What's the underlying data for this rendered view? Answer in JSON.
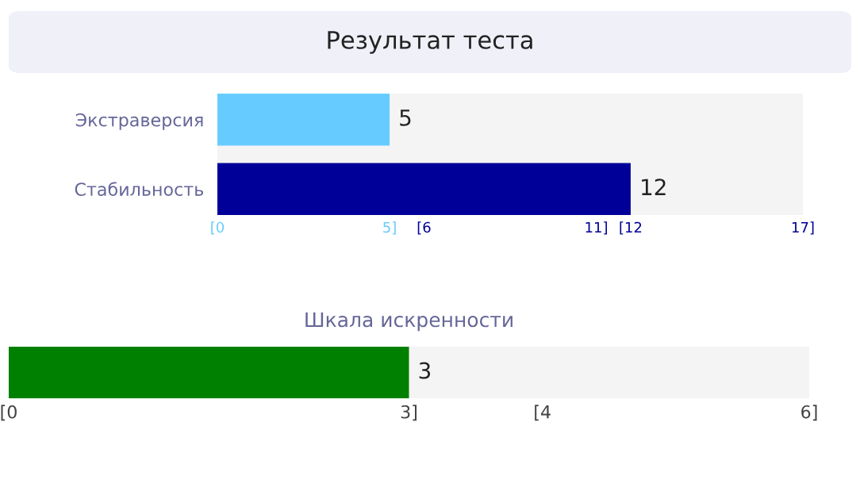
{
  "chart_data": [
    {
      "type": "bar",
      "title": "Результат теста",
      "orientation": "horizontal",
      "categories": [
        "Экстраверсия",
        "Стабильность"
      ],
      "values": [
        5,
        12
      ],
      "colors": [
        "#66ccff",
        "#000099"
      ],
      "data_labels": true,
      "xlim": [
        0,
        17
      ],
      "grid": false,
      "legend": false,
      "xticks": [
        {
          "value": 0,
          "label": "[0"
        },
        {
          "value": 5,
          "label": "5]"
        },
        {
          "value": 6,
          "label": "[6"
        },
        {
          "value": 11,
          "label": "11]"
        },
        {
          "value": 12,
          "label": "[12"
        },
        {
          "value": 17,
          "label": "17]"
        }
      ]
    },
    {
      "type": "bar",
      "title": "Шкала искренности",
      "orientation": "horizontal",
      "categories": [
        null
      ],
      "values": [
        3
      ],
      "colors": [
        "#008000"
      ],
      "data_labels": true,
      "xlim": [
        0,
        6
      ],
      "grid": false,
      "legend": false,
      "xticks": [
        {
          "value": 0,
          "label": "[0"
        },
        {
          "value": 3,
          "label": "3]"
        },
        {
          "value": 4,
          "label": "[4"
        },
        {
          "value": 6,
          "label": "6]"
        }
      ]
    }
  ]
}
